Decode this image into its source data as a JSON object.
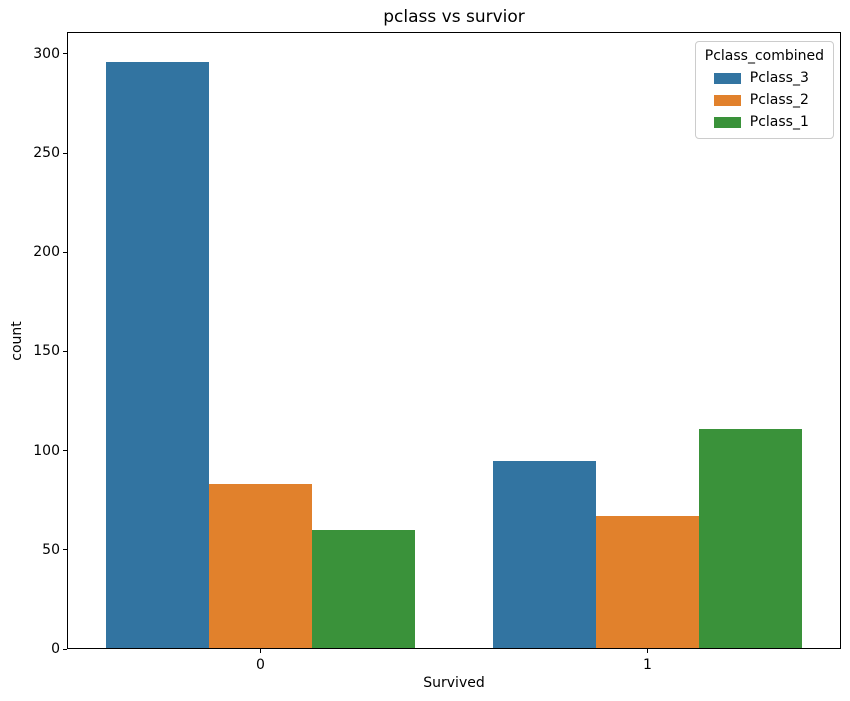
{
  "chart_data": {
    "type": "bar",
    "title": "pclass vs survior",
    "xlabel": "Survived",
    "ylabel": "count",
    "categories": [
      "0",
      "1"
    ],
    "series": [
      {
        "name": "Pclass_3",
        "color": "#3274a1",
        "values": [
          296,
          95
        ]
      },
      {
        "name": "Pclass_2",
        "color": "#e1812c",
        "values": [
          83,
          67
        ]
      },
      {
        "name": "Pclass_1",
        "color": "#3a923a",
        "values": [
          60,
          111
        ]
      }
    ],
    "legend": {
      "title": "Pclass_combined",
      "position": "upper right",
      "entries": [
        "Pclass_3",
        "Pclass_2",
        "Pclass_1"
      ]
    },
    "ylim": [
      0,
      311
    ],
    "yticks": [
      0,
      50,
      100,
      150,
      200,
      250,
      300
    ],
    "grid": false,
    "bar_group_width_fraction": 0.8
  }
}
